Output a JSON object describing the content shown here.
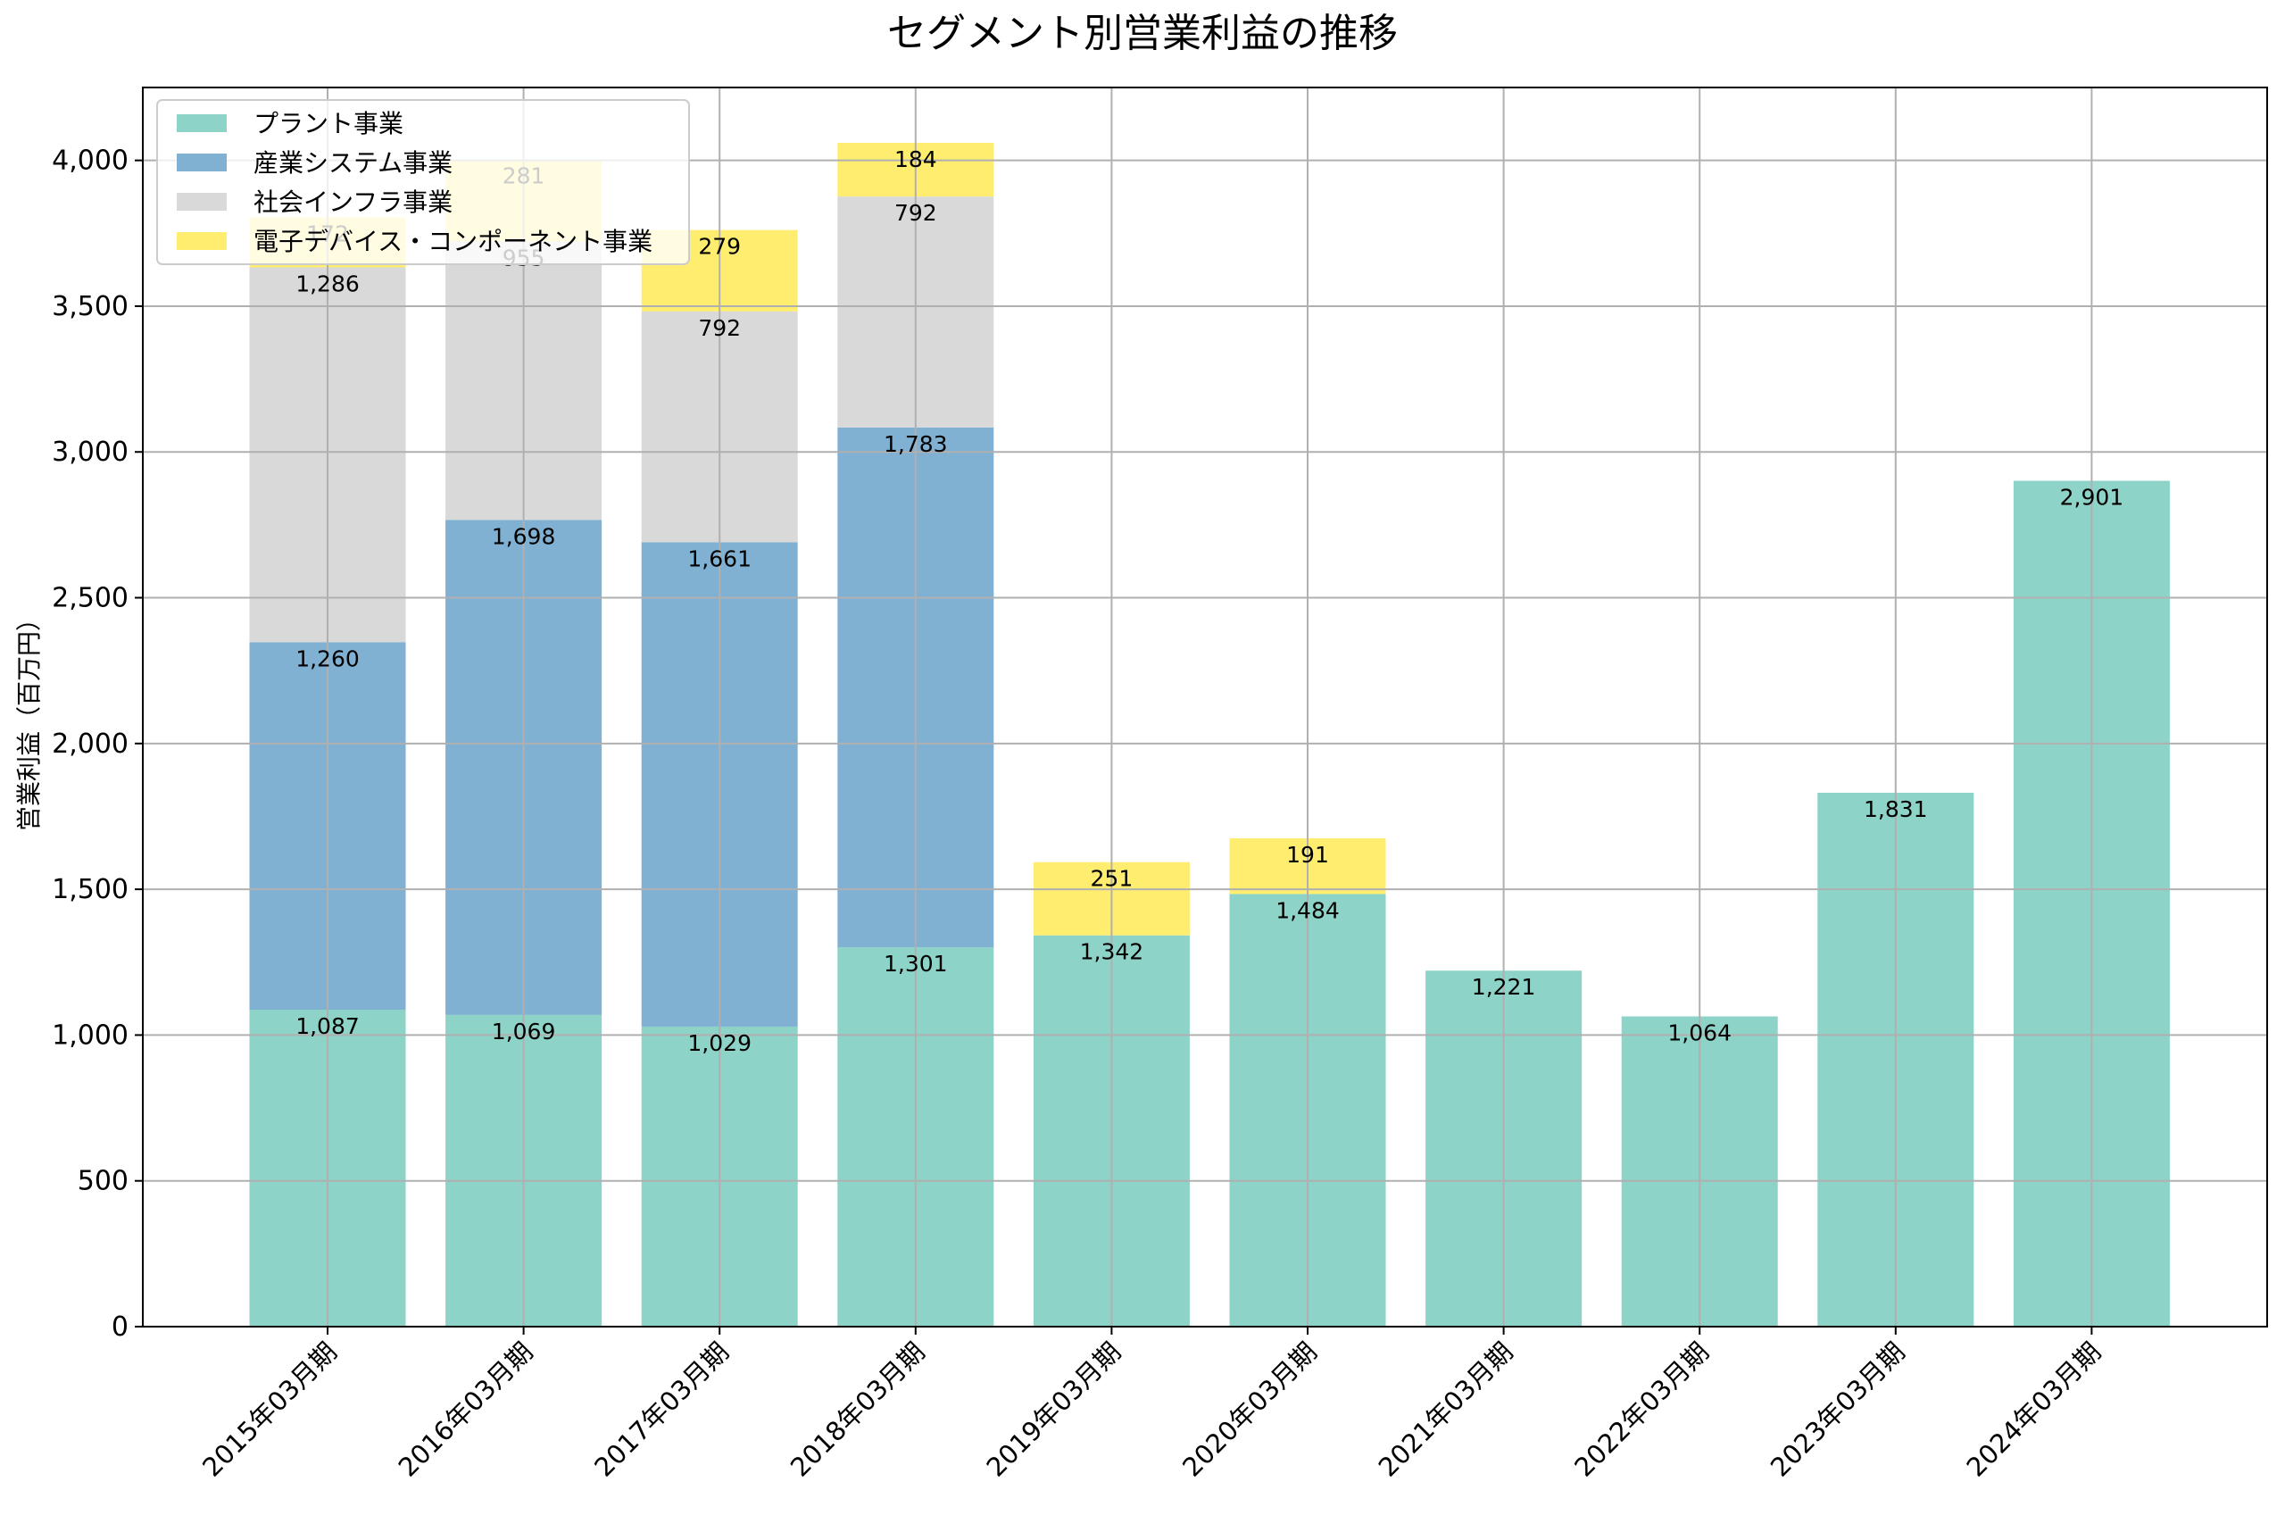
{
  "chart_data": {
    "type": "bar",
    "stacked": true,
    "title": "セグメント別営業利益の推移",
    "xlabel": "",
    "ylabel": "営業利益（百万円）",
    "ylim": [
      0,
      4250
    ],
    "yticks": [
      0,
      500,
      1000,
      1500,
      2000,
      2500,
      3000,
      3500,
      4000
    ],
    "ytick_labels": [
      "0",
      "500",
      "1,000",
      "1,500",
      "2,000",
      "2,500",
      "3,000",
      "3,500",
      "4,000"
    ],
    "grid": true,
    "legend_position": "upper left",
    "categories": [
      "2015年03月期",
      "2016年03月期",
      "2017年03月期",
      "2018年03月期",
      "2019年03月期",
      "2020年03月期",
      "2021年03月期",
      "2022年03月期",
      "2023年03月期",
      "2024年03月期"
    ],
    "series": [
      {
        "name": "プラント事業",
        "color": "#8dd3c7",
        "values": [
          1087,
          1069,
          1029,
          1301,
          1342,
          1484,
          1221,
          1064,
          1831,
          2901
        ],
        "labels": [
          "1,087",
          "1,069",
          "1,029",
          "1,301",
          "1,342",
          "1,484",
          "1,221",
          "1,064",
          "1,831",
          "2,901"
        ]
      },
      {
        "name": "産業システム事業",
        "color": "#80b1d3",
        "values": [
          1260,
          1698,
          1661,
          1783,
          0,
          0,
          0,
          0,
          0,
          0
        ],
        "labels": [
          "1,260",
          "1,698",
          "1,661",
          "1,783",
          "",
          "",
          "",
          "",
          "",
          ""
        ]
      },
      {
        "name": "社会インフラ事業",
        "color": "#d9d9d9",
        "values": [
          1286,
          955,
          792,
          792,
          0,
          0,
          0,
          0,
          0,
          0
        ],
        "labels": [
          "1,286",
          "955",
          "792",
          "792",
          "",
          "",
          "",
          "",
          "",
          ""
        ]
      },
      {
        "name": "電子デバイス・コンポーネント事業",
        "color": "#ffed6f",
        "values": [
          172,
          281,
          279,
          184,
          251,
          191,
          0,
          0,
          0,
          0
        ],
        "labels": [
          "172",
          "281",
          "279",
          "184",
          "251",
          "191",
          "",
          "",
          "",
          ""
        ]
      }
    ]
  }
}
